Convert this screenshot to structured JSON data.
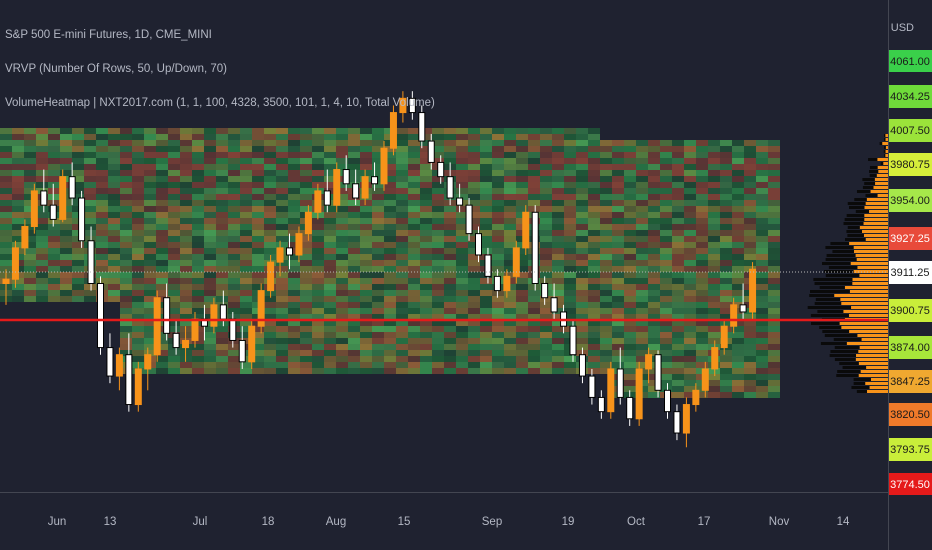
{
  "legend": {
    "symbol": "S&P 500 E-mini Futures, 1D, CME_MINI",
    "vrvp": "VRVP (Number Of Rows, 50, Up/Down, 70)",
    "heatmap": "VolumeHeatmap | NXT2017.com (1, 1, 100, 4328, 3500, 101, 1, 4, 10, Total Volume)"
  },
  "currency": "USD",
  "colors": {
    "background": "#1f2230",
    "up_candle": "#f7931a",
    "down_candle": "#ffffff",
    "red_line": "#e51a1a",
    "last_price_line": "#c0c0c0",
    "vp_up": "#f7931a",
    "vp_down": "#000000"
  },
  "price_scale": [
    {
      "label": "4061.00",
      "color": "#3ad04a",
      "text": "#1a1a1a"
    },
    {
      "label": "4034.25",
      "color": "#6fdb3a",
      "text": "#1a1a1a"
    },
    {
      "label": "4007.50",
      "color": "#9be33a",
      "text": "#1a1a1a"
    },
    {
      "label": "3980.75",
      "color": "#d6ee3a",
      "text": "#1a1a1a"
    },
    {
      "label": "3954.00",
      "color": "#a6e84a",
      "text": "#1a1a1a"
    },
    {
      "label": "3927.25",
      "color": "#e84a3a",
      "text": "#ffffff"
    },
    {
      "label": "3911.25",
      "color": "#ffffff",
      "text": "#1a1a1a"
    },
    {
      "label": "3900.75",
      "color": "#c9ee3a",
      "text": "#1a1a1a"
    },
    {
      "label": "3874.00",
      "color": "#a8e63a",
      "text": "#1a1a1a"
    },
    {
      "label": "3847.25",
      "color": "#f0a830",
      "text": "#1a1a1a"
    },
    {
      "label": "3820.50",
      "color": "#f07a2a",
      "text": "#1a1a1a"
    },
    {
      "label": "3793.75",
      "color": "#c9ee3a",
      "text": "#1a1a1a"
    },
    {
      "label": "3774.50",
      "color": "#e51a1a",
      "text": "#ffffff"
    }
  ],
  "time_axis": [
    "Jun",
    "13",
    "Jul",
    "18",
    "Aug",
    "15",
    "Sep",
    "19",
    "Oct",
    "17",
    "Nov",
    "14"
  ],
  "chart_data": {
    "type": "candlestick",
    "price_range": [
      3750,
      4075
    ],
    "candles": [
      [
        3905,
        3915,
        3890,
        3908
      ],
      [
        3908,
        3935,
        3902,
        3930
      ],
      [
        3930,
        3950,
        3925,
        3945
      ],
      [
        3945,
        3975,
        3940,
        3970
      ],
      [
        3970,
        3985,
        3955,
        3960
      ],
      [
        3960,
        3975,
        3945,
        3950
      ],
      [
        3950,
        3985,
        3948,
        3980
      ],
      [
        3980,
        3990,
        3960,
        3965
      ],
      [
        3965,
        3970,
        3930,
        3935
      ],
      [
        3935,
        3945,
        3900,
        3905
      ],
      [
        3905,
        3910,
        3855,
        3860
      ],
      [
        3860,
        3870,
        3835,
        3840
      ],
      [
        3840,
        3860,
        3830,
        3855
      ],
      [
        3855,
        3870,
        3815,
        3820
      ],
      [
        3820,
        3850,
        3815,
        3845
      ],
      [
        3845,
        3860,
        3830,
        3855
      ],
      [
        3855,
        3900,
        3850,
        3895
      ],
      [
        3895,
        3905,
        3865,
        3870
      ],
      [
        3870,
        3880,
        3855,
        3860
      ],
      [
        3860,
        3875,
        3850,
        3865
      ],
      [
        3865,
        3885,
        3860,
        3880
      ],
      [
        3880,
        3890,
        3865,
        3875
      ],
      [
        3875,
        3895,
        3870,
        3890
      ],
      [
        3890,
        3900,
        3875,
        3880
      ],
      [
        3880,
        3885,
        3860,
        3865
      ],
      [
        3865,
        3875,
        3845,
        3850
      ],
      [
        3850,
        3880,
        3845,
        3875
      ],
      [
        3875,
        3905,
        3870,
        3900
      ],
      [
        3900,
        3925,
        3895,
        3920
      ],
      [
        3920,
        3935,
        3910,
        3930
      ],
      [
        3930,
        3940,
        3915,
        3925
      ],
      [
        3925,
        3945,
        3920,
        3940
      ],
      [
        3940,
        3960,
        3935,
        3955
      ],
      [
        3955,
        3975,
        3950,
        3970
      ],
      [
        3970,
        3985,
        3955,
        3960
      ],
      [
        3960,
        3990,
        3955,
        3985
      ],
      [
        3985,
        3995,
        3970,
        3975
      ],
      [
        3975,
        3985,
        3960,
        3965
      ],
      [
        3965,
        3985,
        3960,
        3980
      ],
      [
        3980,
        3990,
        3970,
        3975
      ],
      [
        3975,
        4005,
        3970,
        4000
      ],
      [
        4000,
        4030,
        3995,
        4025
      ],
      [
        4025,
        4040,
        4018,
        4035
      ],
      [
        4035,
        4040,
        4020,
        4025
      ],
      [
        4025,
        4030,
        4000,
        4005
      ],
      [
        4005,
        4010,
        3985,
        3990
      ],
      [
        3990,
        3995,
        3975,
        3980
      ],
      [
        3980,
        3990,
        3960,
        3965
      ],
      [
        3965,
        3975,
        3955,
        3960
      ],
      [
        3960,
        3965,
        3935,
        3940
      ],
      [
        3940,
        3945,
        3920,
        3925
      ],
      [
        3925,
        3930,
        3905,
        3910
      ],
      [
        3910,
        3915,
        3895,
        3900
      ],
      [
        3900,
        3915,
        3895,
        3910
      ],
      [
        3910,
        3935,
        3905,
        3930
      ],
      [
        3930,
        3960,
        3925,
        3955
      ],
      [
        3955,
        3960,
        3900,
        3905
      ],
      [
        3905,
        3910,
        3890,
        3895
      ],
      [
        3895,
        3905,
        3880,
        3885
      ],
      [
        3885,
        3890,
        3870,
        3875
      ],
      [
        3875,
        3880,
        3850,
        3855
      ],
      [
        3855,
        3860,
        3835,
        3840
      ],
      [
        3840,
        3845,
        3820,
        3825
      ],
      [
        3825,
        3830,
        3810,
        3815
      ],
      [
        3815,
        3850,
        3810,
        3845
      ],
      [
        3845,
        3860,
        3820,
        3825
      ],
      [
        3825,
        3830,
        3805,
        3810
      ],
      [
        3810,
        3850,
        3805,
        3845
      ],
      [
        3845,
        3860,
        3835,
        3855
      ],
      [
        3855,
        3858,
        3825,
        3830
      ],
      [
        3830,
        3835,
        3810,
        3815
      ],
      [
        3815,
        3820,
        3795,
        3800
      ],
      [
        3800,
        3825,
        3790,
        3820
      ],
      [
        3820,
        3835,
        3815,
        3830
      ],
      [
        3830,
        3850,
        3825,
        3845
      ],
      [
        3845,
        3865,
        3840,
        3860
      ],
      [
        3860,
        3880,
        3855,
        3875
      ],
      [
        3875,
        3895,
        3870,
        3890
      ],
      [
        3890,
        3905,
        3880,
        3885
      ],
      [
        3885,
        3920,
        3880,
        3915
      ]
    ]
  }
}
